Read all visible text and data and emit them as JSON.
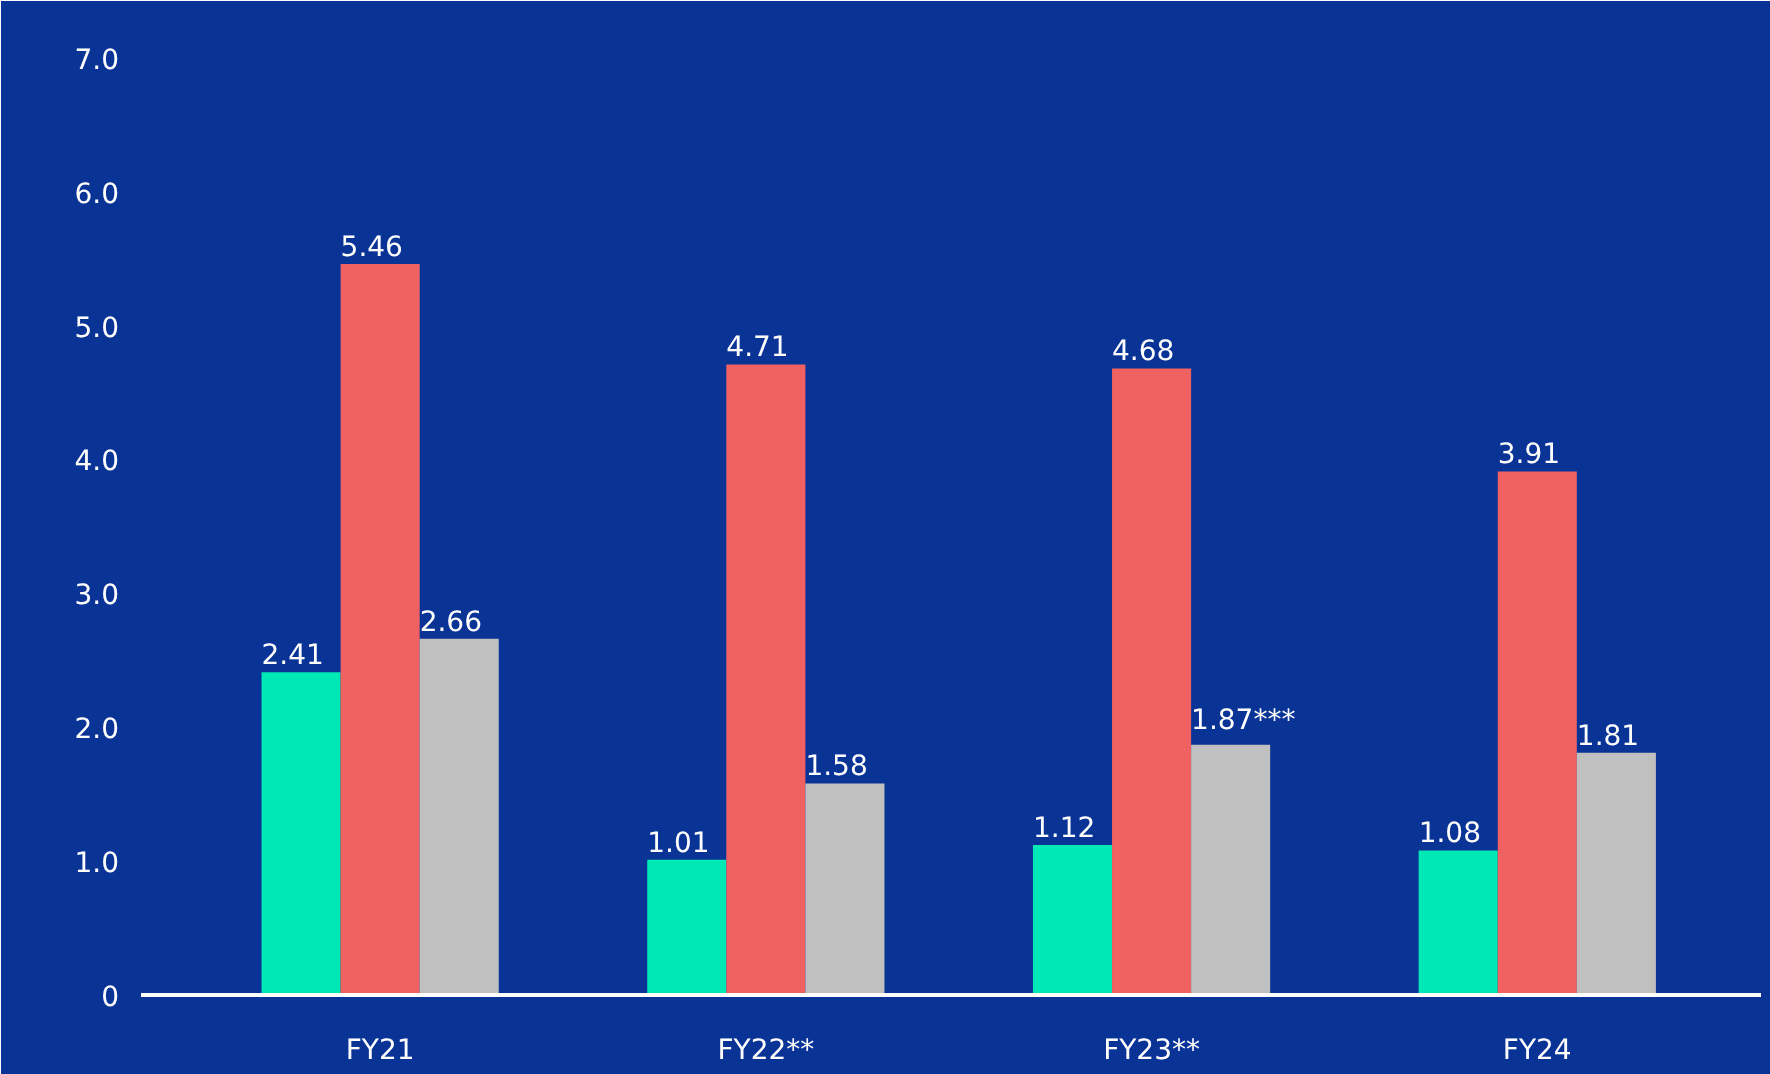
{
  "chart_data": {
    "type": "bar",
    "categories": [
      "FY21",
      "FY22**",
      "FY23**",
      "FY24"
    ],
    "series": [
      {
        "color": "#00e8b5",
        "values": [
          2.41,
          1.01,
          1.12,
          1.08
        ],
        "value_labels": [
          "2.41",
          "1.01",
          "1.12",
          "1.08"
        ]
      },
      {
        "color": "#f06262",
        "values": [
          5.46,
          4.71,
          4.68,
          3.91
        ],
        "value_labels": [
          "5.46",
          "4.71",
          "4.68",
          "3.91"
        ]
      },
      {
        "color": "#c0c0c0",
        "values": [
          2.66,
          1.58,
          1.87,
          1.81
        ],
        "value_labels": [
          "2.66",
          "1.58",
          "1.87***",
          "1.81"
        ]
      }
    ],
    "ylim": [
      0,
      7.2
    ],
    "yticks": [
      0,
      {
        "value": 1,
        "label": "1.0"
      },
      {
        "value": 2,
        "label": "2.0"
      },
      {
        "value": 3,
        "label": "3.0"
      },
      {
        "value": 4,
        "label": "4.0"
      },
      {
        "value": 5,
        "label": "5.0"
      },
      {
        "value": 6,
        "label": "6.0"
      },
      {
        "value": 7,
        "label": "7.0"
      }
    ],
    "grid": false
  }
}
